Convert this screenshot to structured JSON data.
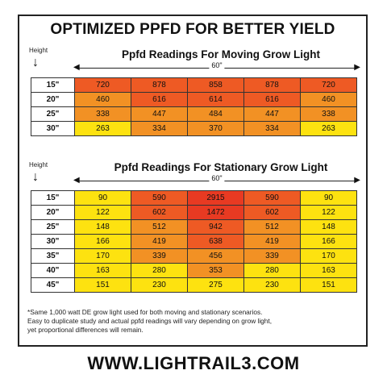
{
  "title": "OPTIMIZED PPFD FOR BETTER YIELD",
  "height_label": "Height",
  "footnote_lines": [
    "*Same 1,000 watt DE grow light used for both moving and stationary scenarios.",
    "Easy to duplicate study and actual ppfd readings will vary depending on grow light,",
    "yet proportional differences will remain."
  ],
  "website": "WWW.LIGHTRAIL3.COM",
  "colors": {
    "deep_red": "#e83a22",
    "orange_red": "#ee5a24",
    "orange": "#f29124",
    "yellow": "#fde210"
  },
  "chart_data": [
    {
      "type": "table",
      "title": "Ppfd Readings For Moving Grow Light",
      "width_label": "60\"",
      "heights": [
        "15\"",
        "20\"",
        "25\"",
        "30\""
      ],
      "rows": [
        [
          720,
          878,
          858,
          878,
          720
        ],
        [
          460,
          616,
          614,
          616,
          460
        ],
        [
          338,
          447,
          484,
          447,
          338
        ],
        [
          263,
          334,
          370,
          334,
          263
        ]
      ]
    },
    {
      "type": "table",
      "title": "Ppfd Readings For Stationary Grow Light",
      "width_label": "60\"",
      "heights": [
        "15\"",
        "20\"",
        "25\"",
        "30\"",
        "35\"",
        "40\"",
        "45\""
      ],
      "rows": [
        [
          90,
          590,
          2915,
          590,
          90
        ],
        [
          122,
          602,
          1472,
          602,
          122
        ],
        [
          148,
          512,
          942,
          512,
          148
        ],
        [
          166,
          419,
          638,
          419,
          166
        ],
        [
          170,
          339,
          456,
          339,
          170
        ],
        [
          163,
          280,
          353,
          280,
          163
        ],
        [
          151,
          230,
          275,
          230,
          151
        ]
      ]
    }
  ]
}
